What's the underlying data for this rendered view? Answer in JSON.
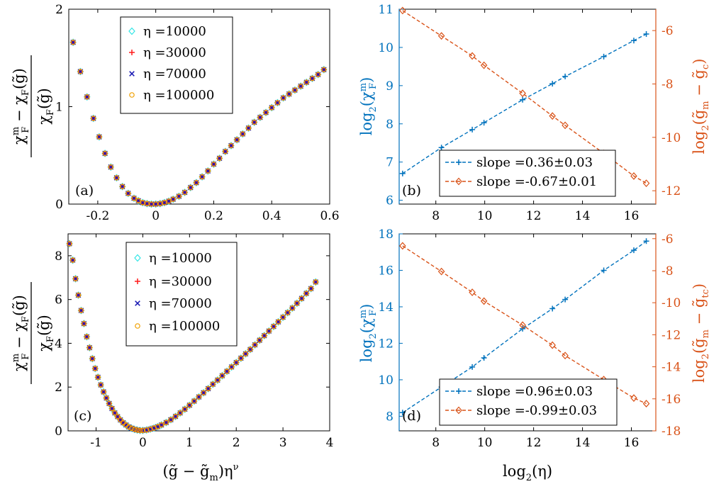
{
  "chart_data": [
    {
      "panel": "(a)",
      "type": "scatter",
      "ylabel": "(χ_F^m − χ_F(g̃)) / χ_F(g̃)",
      "xlim": [
        -0.3,
        0.6
      ],
      "ylim": [
        0,
        2
      ],
      "xticks": [
        -0.2,
        0,
        0.2,
        0.4,
        0.6
      ],
      "xtick_labels": [
        "-0.2",
        "0",
        "0.2",
        "0.4",
        "0.6"
      ],
      "yticks": [
        0,
        1,
        2
      ],
      "ytick_labels": [
        "0",
        "1",
        "2"
      ],
      "legend": [
        "η =10000",
        "η =30000",
        "η =70000",
        "η =100000"
      ],
      "x": [
        -0.285,
        -0.26,
        -0.237,
        -0.215,
        -0.195,
        -0.175,
        -0.155,
        -0.135,
        -0.115,
        -0.095,
        -0.075,
        -0.06,
        -0.045,
        -0.03,
        -0.015,
        0,
        0.015,
        0.03,
        0.045,
        0.06,
        0.08,
        0.1,
        0.12,
        0.14,
        0.16,
        0.18,
        0.2,
        0.22,
        0.24,
        0.26,
        0.28,
        0.3,
        0.32,
        0.34,
        0.36,
        0.38,
        0.4,
        0.42,
        0.44,
        0.46,
        0.48,
        0.5,
        0.52,
        0.54,
        0.56,
        0.58
      ],
      "y": [
        1.66,
        1.36,
        1.1,
        0.88,
        0.69,
        0.52,
        0.38,
        0.27,
        0.18,
        0.11,
        0.06,
        0.035,
        0.015,
        0.005,
        0.0,
        0.0,
        0.005,
        0.015,
        0.03,
        0.05,
        0.08,
        0.12,
        0.17,
        0.22,
        0.28,
        0.34,
        0.41,
        0.47,
        0.54,
        0.6,
        0.66,
        0.72,
        0.78,
        0.84,
        0.89,
        0.94,
        0.99,
        1.04,
        1.09,
        1.13,
        1.17,
        1.21,
        1.25,
        1.29,
        1.33,
        1.38
      ]
    },
    {
      "panel": "(b)",
      "type": "line",
      "ylabel": "log2(χ_F^m)",
      "ylabel_right": "log2(g̃_m − g̃_c)",
      "xlim": [
        6.5,
        17
      ],
      "ylim": [
        5.9,
        11
      ],
      "ylim_right": [
        -12.5,
        -5.2
      ],
      "xticks": [
        8,
        10,
        12,
        14,
        16
      ],
      "xtick_labels": [
        "8",
        "10",
        "12",
        "14",
        "16"
      ],
      "yticks": [
        6,
        7,
        8,
        9,
        10,
        11
      ],
      "ytick_labels": [
        "6",
        "7",
        "8",
        "9",
        "10",
        "11"
      ],
      "yticks_right": [
        -6,
        -8,
        -10,
        -12
      ],
      "ytick_labels_right": [
        "-6",
        "-8",
        "-10",
        "-12"
      ],
      "x": [
        6.64,
        8.23,
        9.49,
        9.97,
        11.55,
        12.77,
        13.29,
        14.87,
        16.1,
        16.61
      ],
      "series": [
        {
          "name": "slope =0.36±0.03",
          "axis": "left",
          "color": "#0072BD",
          "values": [
            6.7,
            7.38,
            7.85,
            8.03,
            8.63,
            9.05,
            9.24,
            9.76,
            10.18,
            10.35
          ]
        },
        {
          "name": "slope =-0.67±0.01",
          "axis": "right",
          "color": "#D95319",
          "values": [
            -5.25,
            -6.2,
            -6.95,
            -7.3,
            -8.35,
            -9.2,
            -9.55,
            -10.6,
            -11.45,
            -11.72
          ]
        }
      ]
    },
    {
      "panel": "(c)",
      "type": "scatter",
      "ylabel": "(χ_F^m − χ_F(g̃)) / χ_F(g̃)",
      "xlabel": "(g̃ − g̃_m) η^ν",
      "xlim": [
        -1.6,
        4
      ],
      "ylim": [
        0,
        9
      ],
      "xticks": [
        -1,
        0,
        1,
        2,
        3,
        4
      ],
      "xtick_labels": [
        "-1",
        "0",
        "1",
        "2",
        "3",
        "4"
      ],
      "yticks": [
        0,
        2,
        4,
        6,
        8
      ],
      "ytick_labels": [
        "0",
        "2",
        "4",
        "6",
        "8"
      ],
      "legend": [
        "η =10000",
        "η =30000",
        "η =70000",
        "η =100000"
      ],
      "x": [
        -1.57,
        -1.5,
        -1.44,
        -1.38,
        -1.32,
        -1.26,
        -1.2,
        -1.14,
        -1.08,
        -1.02,
        -0.96,
        -0.9,
        -0.84,
        -0.78,
        -0.72,
        -0.66,
        -0.6,
        -0.54,
        -0.48,
        -0.42,
        -0.36,
        -0.3,
        -0.24,
        -0.18,
        -0.12,
        -0.06,
        0,
        0.08,
        0.16,
        0.24,
        0.32,
        0.4,
        0.5,
        0.6,
        0.7,
        0.8,
        0.9,
        1.0,
        1.1,
        1.2,
        1.3,
        1.4,
        1.5,
        1.6,
        1.7,
        1.8,
        1.9,
        2.0,
        2.1,
        2.2,
        2.3,
        2.4,
        2.5,
        2.6,
        2.7,
        2.8,
        2.9,
        3.0,
        3.1,
        3.2,
        3.3,
        3.4,
        3.5,
        3.6,
        3.7
      ],
      "y": [
        8.55,
        7.8,
        6.95,
        6.2,
        5.5,
        4.9,
        4.3,
        3.8,
        3.3,
        2.85,
        2.45,
        2.1,
        1.78,
        1.5,
        1.25,
        1.02,
        0.82,
        0.65,
        0.5,
        0.37,
        0.27,
        0.18,
        0.12,
        0.07,
        0.04,
        0.02,
        0.02,
        0.04,
        0.08,
        0.13,
        0.19,
        0.27,
        0.38,
        0.51,
        0.66,
        0.82,
        0.99,
        1.17,
        1.36,
        1.55,
        1.74,
        1.93,
        2.13,
        2.32,
        2.52,
        2.72,
        2.92,
        3.12,
        3.32,
        3.52,
        3.72,
        3.93,
        4.14,
        4.35,
        4.56,
        4.77,
        4.98,
        5.19,
        5.4,
        5.61,
        5.83,
        6.05,
        6.28,
        6.5,
        6.8
      ]
    },
    {
      "panel": "(d)",
      "type": "line",
      "ylabel": "log2(χ_F^m)",
      "ylabel_right": "log2(g̃_m − g̃_tc)",
      "xlabel": "log2(η)",
      "xlim": [
        6.5,
        17
      ],
      "ylim": [
        7.2,
        18
      ],
      "ylim_right": [
        -18,
        -5.7
      ],
      "xticks": [
        8,
        10,
        12,
        14,
        16
      ],
      "xtick_labels": [
        "8",
        "10",
        "12",
        "14",
        "16"
      ],
      "yticks": [
        8,
        10,
        12,
        14,
        16,
        18
      ],
      "ytick_labels": [
        "8",
        "10",
        "12",
        "14",
        "16",
        "18"
      ],
      "yticks_right": [
        -6,
        -8,
        -10,
        -12,
        -14,
        -16,
        -18
      ],
      "ytick_labels_right": [
        "-6",
        "-8",
        "-10",
        "-12",
        "-14",
        "-16",
        "-18"
      ],
      "x": [
        6.64,
        8.23,
        9.49,
        9.97,
        11.55,
        12.77,
        13.29,
        14.87,
        16.1,
        16.61
      ],
      "series": [
        {
          "name": "slope =0.96±0.03",
          "axis": "left",
          "color": "#0072BD",
          "values": [
            8.2,
            9.6,
            10.7,
            11.2,
            12.8,
            13.9,
            14.4,
            16.0,
            17.1,
            17.6
          ]
        },
        {
          "name": "slope =-0.99±0.03",
          "axis": "right",
          "color": "#D95319",
          "values": [
            -6.45,
            -8.05,
            -9.35,
            -9.9,
            -11.4,
            -12.65,
            -13.3,
            -14.8,
            -15.95,
            -16.3
          ]
        }
      ]
    }
  ],
  "panel_labels": [
    "(a)",
    "(b)",
    "(c)",
    "(d)"
  ],
  "colors": {
    "eta10000": "#33E6E6",
    "eta30000": "#FF1A1A",
    "eta70000": "#1A1AB3",
    "eta100000": "#F0A000",
    "blue": "#0072BD",
    "orange": "#D95319"
  }
}
